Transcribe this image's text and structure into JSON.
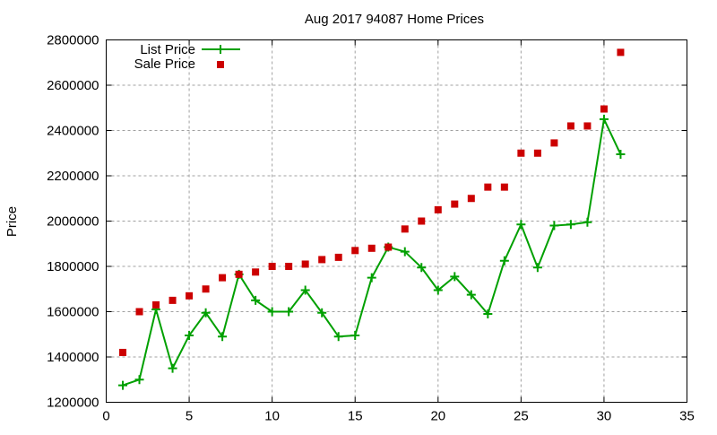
{
  "chart_data": {
    "type": "line",
    "title": "Aug 2017 94087 Home Prices",
    "xlabel": "",
    "ylabel": "Price",
    "xlim": [
      0,
      35
    ],
    "ylim": [
      1200000,
      2800000
    ],
    "xticks": [
      0,
      5,
      10,
      15,
      20,
      25,
      30,
      35
    ],
    "yticks": [
      1200000,
      1400000,
      1600000,
      1800000,
      2000000,
      2200000,
      2400000,
      2600000,
      2800000
    ],
    "grid": true,
    "legend_position": "top-left",
    "x": [
      1,
      2,
      3,
      4,
      5,
      6,
      7,
      8,
      9,
      10,
      11,
      12,
      13,
      14,
      15,
      16,
      17,
      18,
      19,
      20,
      21,
      22,
      23,
      24,
      25,
      26,
      27,
      28,
      29,
      30,
      31
    ],
    "series": [
      {
        "name": "List Price",
        "style": "linespoints",
        "color": "#00a000",
        "values": [
          1275000,
          1300000,
          1610000,
          1350000,
          1495000,
          1595000,
          1490000,
          1765000,
          1650000,
          1600000,
          1600000,
          1695000,
          1595000,
          1490000,
          1495000,
          1750000,
          1885000,
          1865000,
          1795000,
          1695000,
          1755000,
          1675000,
          1590000,
          1825000,
          1985000,
          1795000,
          1980000,
          1985000,
          1995000,
          2450000,
          2295000
        ]
      },
      {
        "name": "Sale Price",
        "style": "points",
        "color": "#cc0000",
        "values": [
          1420000,
          1600000,
          1630000,
          1650000,
          1670000,
          1700000,
          1750000,
          1765000,
          1775000,
          1800000,
          1800000,
          1810000,
          1830000,
          1840000,
          1870000,
          1880000,
          1885000,
          1965000,
          2000000,
          2050000,
          2075000,
          2100000,
          2150000,
          2150000,
          2300000,
          2300000,
          2345000,
          2420000,
          2420000,
          2495000,
          2745000
        ]
      }
    ]
  }
}
